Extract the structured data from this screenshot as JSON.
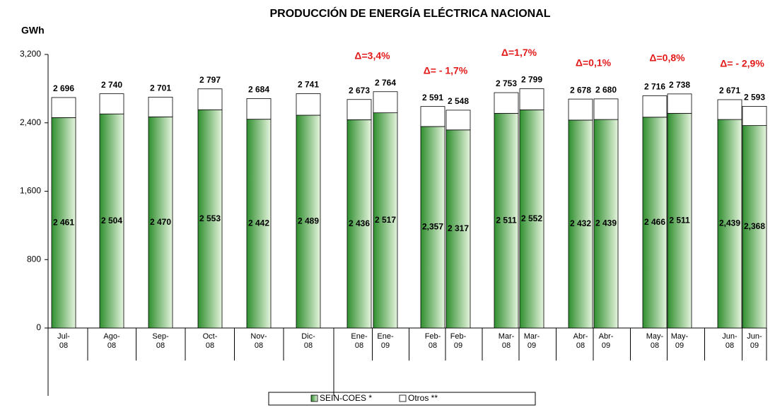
{
  "chart_data": {
    "type": "stacked_bar",
    "title": "PRODUCCIÓN DE ENERGÍA ELÉCTRICA NACIONAL",
    "y_label": "GWh",
    "categories": [
      [
        "Jul-",
        "08"
      ],
      [
        "Ago-",
        "08"
      ],
      [
        "Sep-",
        "08"
      ],
      [
        "Oct-",
        "08"
      ],
      [
        "Nov-",
        "08"
      ],
      [
        "Dic-",
        "08"
      ],
      [
        "Ene-",
        "08"
      ],
      [
        "Ene-",
        "09"
      ],
      [
        "Feb-",
        "08"
      ],
      [
        "Feb-",
        "09"
      ],
      [
        "Mar-",
        "08"
      ],
      [
        "Mar-",
        "09"
      ],
      [
        "Abr-",
        "08"
      ],
      [
        "Abr-",
        "09"
      ],
      [
        "May-",
        "08"
      ],
      [
        "May-",
        "09"
      ],
      [
        "Jun-",
        "08"
      ],
      [
        "Jun-",
        "09"
      ]
    ],
    "series": [
      {
        "name": "SEIN-COES *",
        "color": "#3a9a3a",
        "values": [
          2461,
          2504,
          2470,
          2553,
          2442,
          2489,
          2436,
          2517,
          2357,
          2317,
          2511,
          2552,
          2432,
          2439,
          2466,
          2511,
          2439,
          2368
        ],
        "value_labels": [
          "2 461",
          "2 504",
          "2 470",
          "2 553",
          "2 442",
          "2 489",
          "2 436",
          "2 517",
          "2,357",
          "2 317",
          "2 511",
          "2 552",
          "2 432",
          "2 439",
          "2 466",
          "2 511",
          "2,439",
          "2,368"
        ]
      },
      {
        "name": "Otros **",
        "color": "#ffffff",
        "values": [
          235,
          236,
          231,
          244,
          242,
          252,
          237,
          247,
          234,
          231,
          242,
          247,
          246,
          241,
          250,
          227,
          232,
          225
        ]
      }
    ],
    "totals": [
      2696,
      2740,
      2701,
      2797,
      2684,
      2741,
      2673,
      2764,
      2591,
      2548,
      2753,
      2799,
      2678,
      2680,
      2716,
      2738,
      2671,
      2593
    ],
    "total_labels": [
      "2 696",
      "2 740",
      "2 701",
      "2 797",
      "2 684",
      "2 741",
      "2 673",
      "2 764",
      "2 591",
      "2 548",
      "2 753",
      "2 799",
      "2 678",
      "2 680",
      "2 716",
      "2 738",
      "2 671",
      "2 593"
    ],
    "annotations": [
      "Δ=3,4%",
      "Δ= - 1,7%",
      "Δ=1,7%",
      "Δ=0,1%",
      "Δ=0,8%",
      "Δ= - 2,9%"
    ],
    "ylim": [
      0,
      3200
    ],
    "yticks": [
      0,
      {
        "value": 800,
        "label": "800"
      },
      {
        "value": 1600,
        "label": "1,600"
      },
      {
        "value": 2400,
        "label": "2,400"
      },
      {
        "value": 3200,
        "label": "3,200"
      }
    ]
  }
}
